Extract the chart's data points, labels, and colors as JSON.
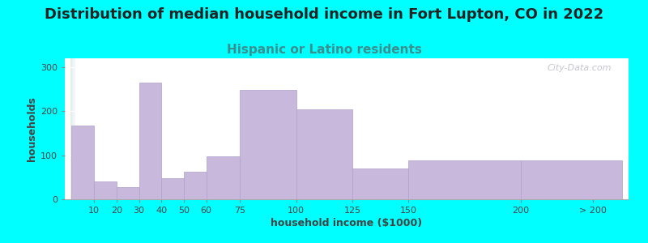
{
  "title": "Distribution of median household income in Fort Lupton, CO in 2022",
  "subtitle": "Hispanic or Latino residents",
  "xlabel": "household income ($1000)",
  "ylabel": "households",
  "background_color": "#00FFFF",
  "plot_bg_gradient_left": "#dff2d8",
  "plot_bg_gradient_right": "#f5f5ff",
  "bar_color": "#c8b8dc",
  "bar_edge_color": "#b0a0c8",
  "categories": [
    "10",
    "20",
    "30",
    "40",
    "50",
    "60",
    "75",
    "100",
    "125",
    "150",
    "200",
    "> 200"
  ],
  "values": [
    168,
    40,
    28,
    265,
    48,
    63,
    97,
    248,
    205,
    70,
    88,
    88
  ],
  "ylim": [
    0,
    320
  ],
  "yticks": [
    0,
    100,
    200,
    300
  ],
  "title_fontsize": 13,
  "subtitle_fontsize": 11,
  "subtitle_color": "#3a9090",
  "axis_label_fontsize": 9,
  "tick_fontsize": 8,
  "watermark_text": "City-Data.com"
}
